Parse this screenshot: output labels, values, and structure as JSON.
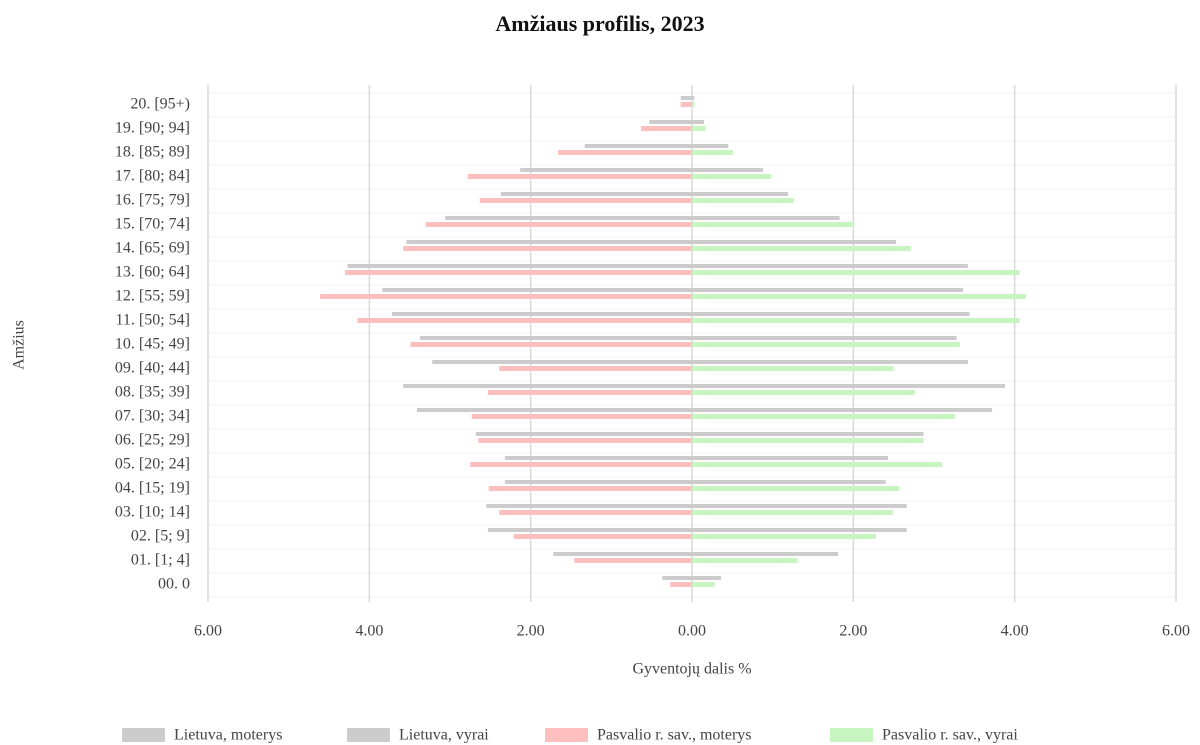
{
  "chart_data": {
    "type": "pyramid",
    "title": "Amžiaus profilis, 2023",
    "xlabel": "Gyventojų dalis %",
    "ylabel": "Amžius",
    "categories": [
      "20. [95+)",
      "19. [90; 94]",
      "18. [85; 89]",
      "17. [80; 84]",
      "16. [75; 79]",
      "15. [70; 74]",
      "14. [65; 69]",
      "13. [60; 64]",
      "12. [55; 59]",
      "11. [50; 54]",
      "10. [45; 49]",
      "09. [40; 44]",
      "08. [35; 39]",
      "07. [30; 34]",
      "06. [25; 29]",
      "05. [20; 24]",
      "04. [15; 19]",
      "03. [10; 14]",
      "02. [5; 9]",
      "01. [1; 4]",
      "00. 0"
    ],
    "xlim": [
      -6,
      6
    ],
    "xticks": [
      {
        "value": -6,
        "label": "6.00"
      },
      {
        "value": -4,
        "label": "4.00"
      },
      {
        "value": -2,
        "label": "2.00"
      },
      {
        "value": 0,
        "label": "0.00"
      },
      {
        "value": 2,
        "label": "2.00"
      },
      {
        "value": 4,
        "label": "4.00"
      },
      {
        "value": 6,
        "label": "6.00"
      }
    ],
    "grid": true,
    "series": [
      {
        "name": "Lietuva, moterys",
        "color": "#cccccc",
        "values": [
          -0.14,
          -0.53,
          -1.33,
          -2.13,
          -2.37,
          -3.06,
          -3.54,
          -4.27,
          -3.84,
          -3.72,
          -3.37,
          -3.22,
          -3.58,
          -3.41,
          -2.68,
          -2.32,
          -2.32,
          -2.55,
          -2.53,
          -1.72,
          -0.37
        ]
      },
      {
        "name": "Lietuva, vyrai",
        "color": "#cccccc",
        "values": [
          0.03,
          0.15,
          0.45,
          0.88,
          1.19,
          1.83,
          2.53,
          3.42,
          3.36,
          3.44,
          3.28,
          3.42,
          3.88,
          3.72,
          2.87,
          2.43,
          2.4,
          2.66,
          2.66,
          1.81,
          0.36
        ]
      },
      {
        "name": "Pasvalio r. sav., moterys",
        "color": "#ffbfbf",
        "values": [
          -0.14,
          -0.63,
          -1.66,
          -2.78,
          -2.63,
          -3.3,
          -3.58,
          -4.3,
          -4.61,
          -4.15,
          -3.49,
          -2.39,
          -2.53,
          -2.73,
          -2.65,
          -2.75,
          -2.52,
          -2.39,
          -2.21,
          -1.46,
          -0.27
        ]
      },
      {
        "name": "Pasvalio r. sav., vyrai",
        "color": "#c6f5c0",
        "values": [
          0.03,
          0.17,
          0.51,
          0.98,
          1.26,
          2.01,
          2.71,
          4.06,
          4.14,
          4.06,
          3.32,
          2.5,
          2.76,
          3.26,
          2.87,
          3.1,
          2.57,
          2.49,
          2.28,
          1.31,
          0.28
        ]
      }
    ]
  }
}
